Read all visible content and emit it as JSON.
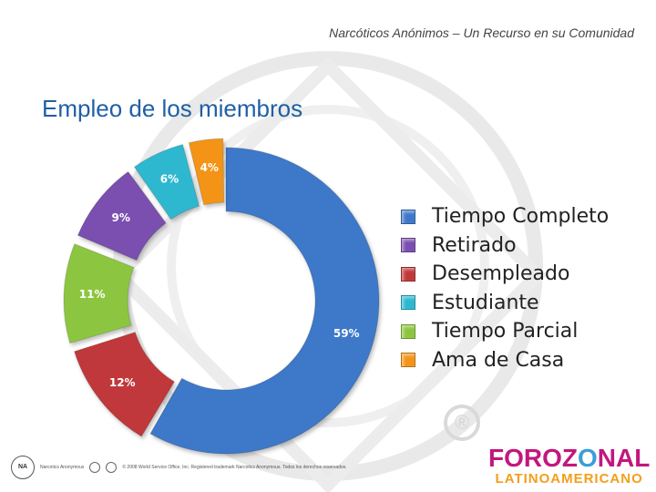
{
  "header": {
    "text": "Narcóticos Anónimos – Un Recurso en su Comunidad"
  },
  "slide": {
    "title": "Empleo de los miembros"
  },
  "chart_data": {
    "type": "pie",
    "variant": "donut",
    "title": "Empleo de los miembros",
    "categories": [
      "Tiempo Completo",
      "Desempleado",
      "Tiempo Parcial",
      "Retirado",
      "Estudiante",
      "Ama de Casa"
    ],
    "values": [
      59,
      12,
      11,
      9,
      6,
      4
    ],
    "labels": [
      "59%",
      "12%",
      "11%",
      "9%",
      "6%",
      "4%"
    ],
    "colors": [
      "#3E78C9",
      "#C0393A",
      "#8CC63F",
      "#7A4FAF",
      "#2EB8D0",
      "#F39419"
    ],
    "legend_order": [
      "Tiempo Completo",
      "Retirado",
      "Desempleado",
      "Estudiante",
      "Tiempo Parcial",
      "Ama de Casa"
    ],
    "legend_position": "right"
  },
  "legend_colors": {
    "Tiempo Completo": "#3E78C9",
    "Retirado": "#7A4FAF",
    "Desempleado": "#C0393A",
    "Estudiante": "#2EB8D0",
    "Tiempo Parcial": "#8CC63F",
    "Ama de Casa": "#F39419"
  },
  "watermark": {
    "registered": "®"
  },
  "footer": {
    "seal_text": "NA",
    "org_text": "Narcotics Anonymous",
    "legal_text": "© 2008 World Service Office, Inc. Registered trademark Narcotics Anonymous. Todos los derechos reservados."
  },
  "logo": {
    "top_a": "FORO",
    "top_b": "Z",
    "top_o": "O",
    "top_c": "NAL",
    "bottom": "LATINOAMERICANO"
  }
}
